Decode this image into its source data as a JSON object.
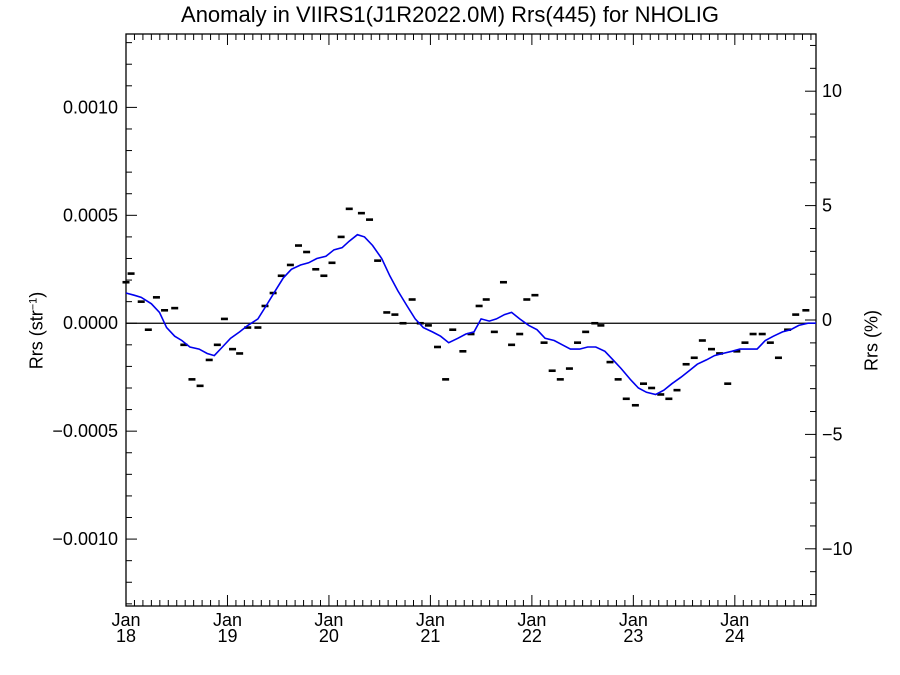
{
  "chart_data": {
    "type": "line",
    "title": "Anomaly in VIIRS1(J1R2022.0M) Rrs(445) for NHOLIG",
    "ylabel": "Rrs (str",
    "ylabel_sup": "−1",
    "ylabel_close": ")",
    "ylabel_right": "Rrs (%)",
    "xlim": [
      2018.0,
      2024.8
    ],
    "ylim": [
      -0.00131,
      0.00134
    ],
    "ylim_right": [
      -12.5,
      12.5
    ],
    "yticks": [
      {
        "v": 0.001,
        "label": "0.0010"
      },
      {
        "v": 0.0005,
        "label": "0.0005"
      },
      {
        "v": 0.0,
        "label": "0.0000"
      },
      {
        "v": -0.0005,
        "label": "−0.0005"
      },
      {
        "v": -0.001,
        "label": "−0.0010"
      }
    ],
    "yticks_right": [
      {
        "v": 10,
        "label": "10"
      },
      {
        "v": 5,
        "label": "5"
      },
      {
        "v": 0,
        "label": "0"
      },
      {
        "v": -5,
        "label": "−5"
      },
      {
        "v": -10,
        "label": "−10"
      }
    ],
    "xticks": [
      {
        "v": 2018,
        "label1": "Jan",
        "label2": "18"
      },
      {
        "v": 2019,
        "label1": "Jan",
        "label2": "19"
      },
      {
        "v": 2020,
        "label1": "Jan",
        "label2": "20"
      },
      {
        "v": 2021,
        "label1": "Jan",
        "label2": "21"
      },
      {
        "v": 2022,
        "label1": "Jan",
        "label2": "22"
      },
      {
        "v": 2023,
        "label1": "Jan",
        "label2": "23"
      },
      {
        "v": 2024,
        "label1": "Jan",
        "label2": "24"
      }
    ],
    "zero_line": 0,
    "line_color": "#0000ee",
    "marker_color": "#000000",
    "series": [
      {
        "type": "scatter-dash",
        "points": [
          [
            2018.0,
            0.00019
          ],
          [
            2018.05,
            0.00023
          ],
          [
            2018.15,
            0.0001
          ],
          [
            2018.22,
            -3e-05
          ],
          [
            2018.3,
            0.00012
          ],
          [
            2018.38,
            6e-05
          ],
          [
            2018.48,
            7e-05
          ],
          [
            2018.57,
            -0.0001
          ],
          [
            2018.65,
            -0.00026
          ],
          [
            2018.73,
            -0.00029
          ],
          [
            2018.82,
            -0.00017
          ],
          [
            2018.9,
            -0.0001
          ],
          [
            2018.97,
            2e-05
          ],
          [
            2019.05,
            -0.00012
          ],
          [
            2019.12,
            -0.00014
          ],
          [
            2019.2,
            -2e-05
          ],
          [
            2019.3,
            -2e-05
          ],
          [
            2019.37,
            8e-05
          ],
          [
            2019.45,
            0.00014
          ],
          [
            2019.53,
            0.00022
          ],
          [
            2019.62,
            0.00027
          ],
          [
            2019.7,
            0.00036
          ],
          [
            2019.78,
            0.00033
          ],
          [
            2019.87,
            0.00025
          ],
          [
            2019.95,
            0.00022
          ],
          [
            2020.03,
            0.00028
          ],
          [
            2020.12,
            0.0004
          ],
          [
            2020.2,
            0.00053
          ],
          [
            2020.32,
            0.00051
          ],
          [
            2020.4,
            0.00048
          ],
          [
            2020.48,
            0.00029
          ],
          [
            2020.57,
            5e-05
          ],
          [
            2020.65,
            4e-05
          ],
          [
            2020.73,
            0.0
          ],
          [
            2020.82,
            0.00011
          ],
          [
            2020.9,
            0.0
          ],
          [
            2020.98,
            -1e-05
          ],
          [
            2021.07,
            -0.00011
          ],
          [
            2021.15,
            -0.00026
          ],
          [
            2021.22,
            -3e-05
          ],
          [
            2021.32,
            -0.00013
          ],
          [
            2021.4,
            -5e-05
          ],
          [
            2021.48,
            8e-05
          ],
          [
            2021.55,
            0.00011
          ],
          [
            2021.63,
            -4e-05
          ],
          [
            2021.72,
            0.00019
          ],
          [
            2021.8,
            -0.0001
          ],
          [
            2021.88,
            -5e-05
          ],
          [
            2021.95,
            0.00011
          ],
          [
            2022.03,
            0.00013
          ],
          [
            2022.12,
            -9e-05
          ],
          [
            2022.2,
            -0.00022
          ],
          [
            2022.28,
            -0.00026
          ],
          [
            2022.37,
            -0.00021
          ],
          [
            2022.45,
            -9e-05
          ],
          [
            2022.53,
            -4e-05
          ],
          [
            2022.62,
            0.0
          ],
          [
            2022.68,
            -1e-05
          ],
          [
            2022.77,
            -0.00018
          ],
          [
            2022.85,
            -0.00026
          ],
          [
            2022.93,
            -0.00035
          ],
          [
            2023.02,
            -0.00038
          ],
          [
            2023.1,
            -0.00028
          ],
          [
            2023.18,
            -0.0003
          ],
          [
            2023.27,
            -0.00033
          ],
          [
            2023.35,
            -0.00035
          ],
          [
            2023.43,
            -0.00031
          ],
          [
            2023.52,
            -0.00019
          ],
          [
            2023.6,
            -0.00016
          ],
          [
            2023.68,
            -8e-05
          ],
          [
            2023.77,
            -0.00012
          ],
          [
            2023.85,
            -0.00014
          ],
          [
            2023.93,
            -0.00028
          ],
          [
            2024.02,
            -0.00013
          ],
          [
            2024.1,
            -9e-05
          ],
          [
            2024.18,
            -5e-05
          ],
          [
            2024.27,
            -5e-05
          ],
          [
            2024.35,
            -9e-05
          ],
          [
            2024.43,
            -0.00016
          ],
          [
            2024.52,
            -3e-05
          ],
          [
            2024.6,
            4e-05
          ],
          [
            2024.7,
            6e-05
          ]
        ]
      },
      {
        "type": "line",
        "points": [
          [
            2018.0,
            0.00014
          ],
          [
            2018.08,
            0.00013
          ],
          [
            2018.15,
            0.00012
          ],
          [
            2018.25,
            9e-05
          ],
          [
            2018.33,
            5e-05
          ],
          [
            2018.4,
            -2e-05
          ],
          [
            2018.48,
            -6e-05
          ],
          [
            2018.55,
            -8e-05
          ],
          [
            2018.63,
            -0.00011
          ],
          [
            2018.72,
            -0.00012
          ],
          [
            2018.8,
            -0.00014
          ],
          [
            2018.87,
            -0.00015
          ],
          [
            2018.95,
            -0.00011
          ],
          [
            2019.03,
            -7e-05
          ],
          [
            2019.12,
            -4e-05
          ],
          [
            2019.2,
            -1e-05
          ],
          [
            2019.3,
            2e-05
          ],
          [
            2019.38,
            8e-05
          ],
          [
            2019.47,
            0.00015
          ],
          [
            2019.55,
            0.00021
          ],
          [
            2019.63,
            0.00025
          ],
          [
            2019.72,
            0.00027
          ],
          [
            2019.8,
            0.00028
          ],
          [
            2019.88,
            0.0003
          ],
          [
            2019.97,
            0.00031
          ],
          [
            2020.05,
            0.00034
          ],
          [
            2020.13,
            0.00035
          ],
          [
            2020.2,
            0.00038
          ],
          [
            2020.28,
            0.00041
          ],
          [
            2020.35,
            0.0004
          ],
          [
            2020.43,
            0.00036
          ],
          [
            2020.52,
            0.0003
          ],
          [
            2020.6,
            0.00022
          ],
          [
            2020.68,
            0.00015
          ],
          [
            2020.77,
            8e-05
          ],
          [
            2020.85,
            2e-05
          ],
          [
            2020.93,
            -2e-05
          ],
          [
            2021.02,
            -4e-05
          ],
          [
            2021.1,
            -6e-05
          ],
          [
            2021.18,
            -9e-05
          ],
          [
            2021.27,
            -7e-05
          ],
          [
            2021.35,
            -5e-05
          ],
          [
            2021.43,
            -4e-05
          ],
          [
            2021.5,
            2e-05
          ],
          [
            2021.58,
            1e-05
          ],
          [
            2021.65,
            2e-05
          ],
          [
            2021.73,
            4e-05
          ],
          [
            2021.8,
            5e-05
          ],
          [
            2021.88,
            2e-05
          ],
          [
            2021.97,
            -1e-05
          ],
          [
            2022.05,
            -3e-05
          ],
          [
            2022.13,
            -7e-05
          ],
          [
            2022.22,
            -8e-05
          ],
          [
            2022.3,
            -0.0001
          ],
          [
            2022.38,
            -0.00012
          ],
          [
            2022.47,
            -0.00012
          ],
          [
            2022.55,
            -0.00011
          ],
          [
            2022.63,
            -0.00011
          ],
          [
            2022.72,
            -0.00013
          ],
          [
            2022.8,
            -0.00017
          ],
          [
            2022.88,
            -0.00021
          ],
          [
            2022.97,
            -0.00026
          ],
          [
            2023.05,
            -0.0003
          ],
          [
            2023.13,
            -0.00032
          ],
          [
            2023.22,
            -0.00033
          ],
          [
            2023.3,
            -0.00031
          ],
          [
            2023.38,
            -0.00028
          ],
          [
            2023.47,
            -0.00025
          ],
          [
            2023.55,
            -0.00022
          ],
          [
            2023.63,
            -0.00019
          ],
          [
            2023.72,
            -0.00017
          ],
          [
            2023.8,
            -0.00015
          ],
          [
            2023.88,
            -0.00014
          ],
          [
            2023.97,
            -0.00013
          ],
          [
            2024.05,
            -0.00012
          ],
          [
            2024.13,
            -0.00012
          ],
          [
            2024.22,
            -0.00012
          ],
          [
            2024.3,
            -8e-05
          ],
          [
            2024.38,
            -6e-05
          ],
          [
            2024.47,
            -4e-05
          ],
          [
            2024.55,
            -3e-05
          ],
          [
            2024.63,
            -1e-05
          ],
          [
            2024.72,
            0.0
          ],
          [
            2024.8,
            0.0
          ]
        ]
      }
    ]
  }
}
